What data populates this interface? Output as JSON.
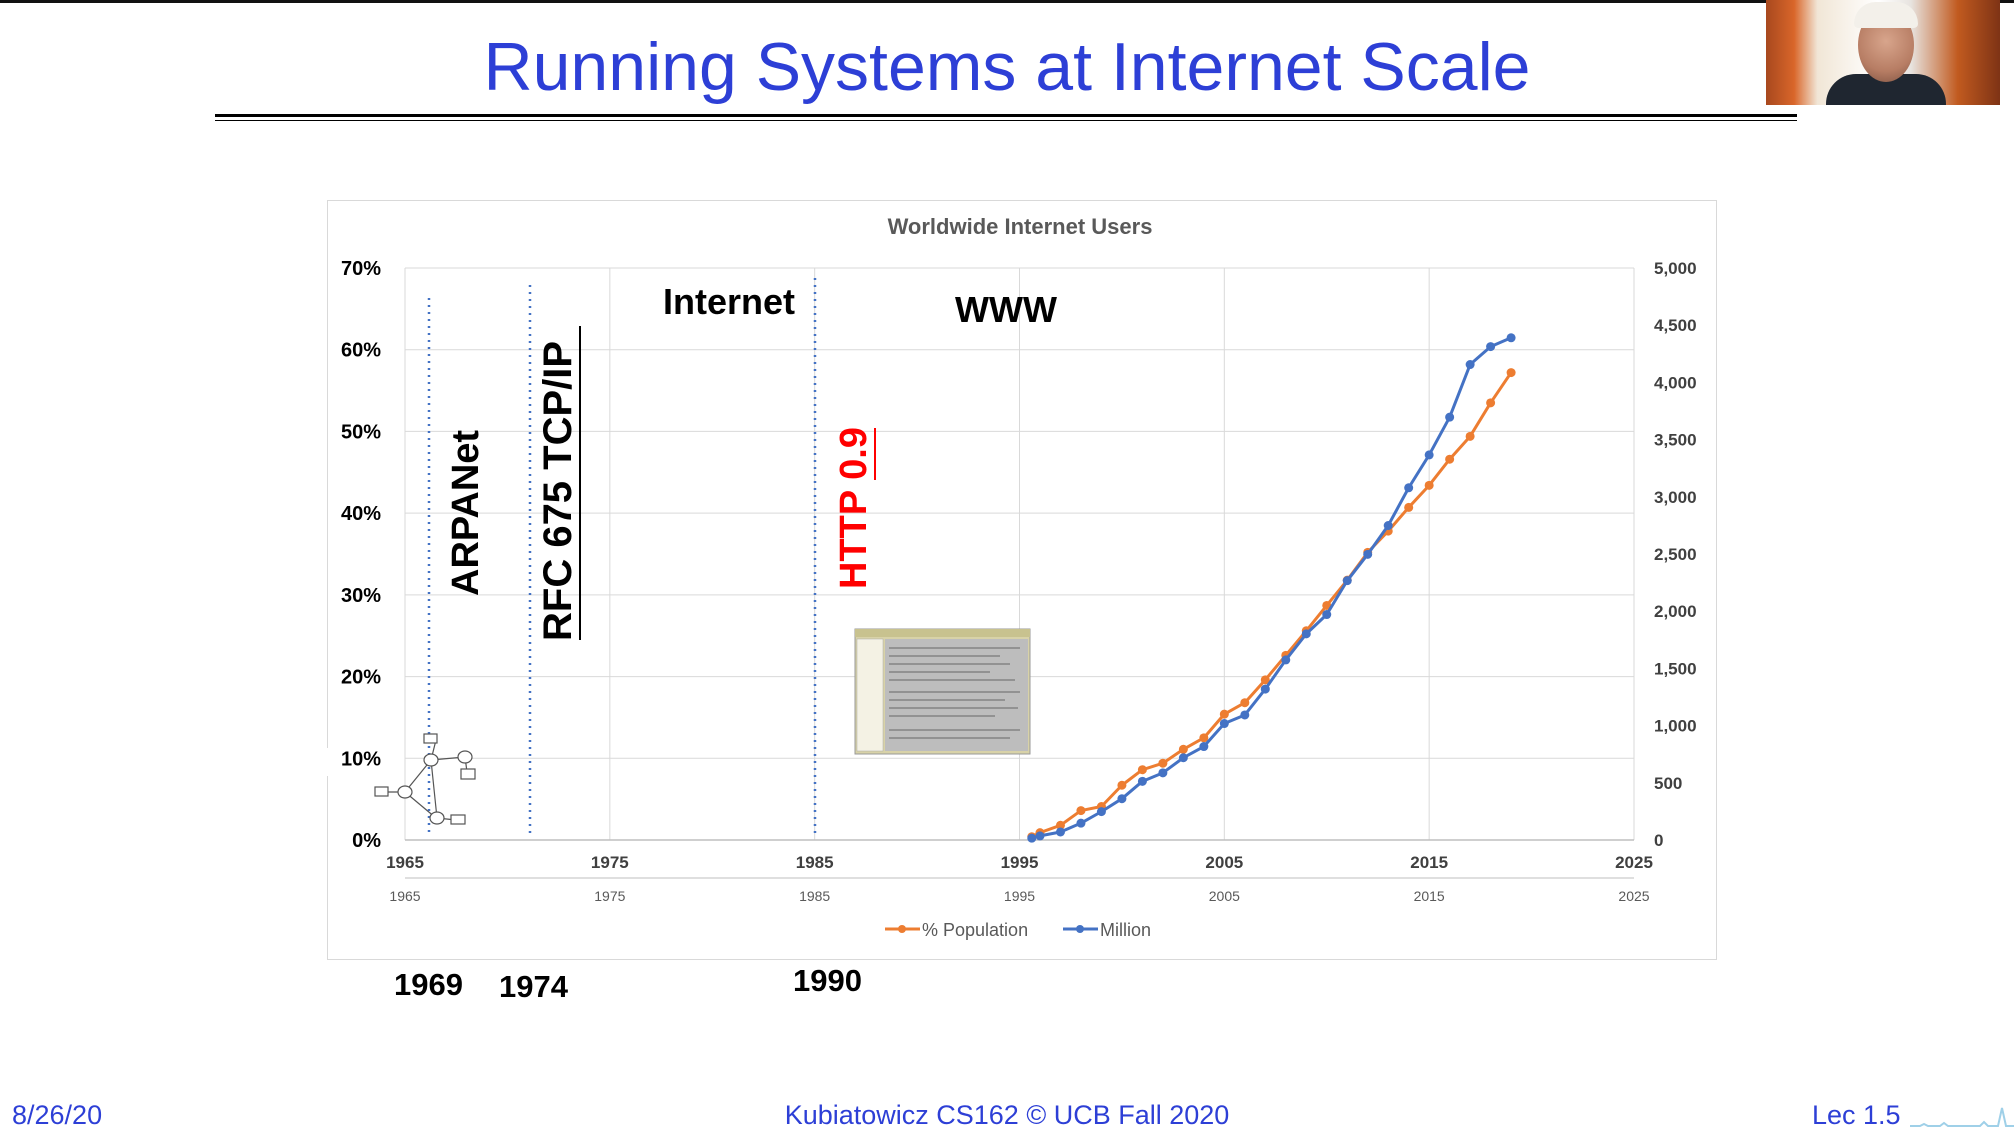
{
  "slide": {
    "title": "Running Systems at Internet Scale",
    "footer_date": "8/26/20",
    "footer_center": "Kubiatowicz CS162 © UCB Fall 2020",
    "footer_right": "Lec 1.5"
  },
  "colors": {
    "title": "#2d3fd6",
    "series_population": "#ed7d31",
    "series_million": "#4472c4",
    "marker_line": "#4472c4",
    "http_label": "#ff0000"
  },
  "annotations": {
    "arpanet": "ARPANet",
    "rfc": "RFC 675 TCP/IP",
    "internet": "Internet",
    "http": "HTTP 0.9",
    "www": "WWW",
    "year_1969": "1969",
    "year_1974": "1974",
    "year_1990": "1990"
  },
  "chart_data": {
    "type": "line",
    "title": "Worldwide Internet Users",
    "grid": true,
    "legend_position": "bottom",
    "xlim": [
      1965,
      2025
    ],
    "x_ticks": [
      "1965",
      "1975",
      "1985",
      "1995",
      "2005",
      "2015",
      "2025"
    ],
    "y_left": {
      "lim": [
        0,
        70
      ],
      "ticks": [
        "0%",
        "10%",
        "20%",
        "30%",
        "40%",
        "50%",
        "60%",
        "70%"
      ]
    },
    "y_right": {
      "lim": [
        0,
        5000
      ],
      "ticks": [
        "0",
        "500",
        "1,000",
        "1,500",
        "2,000",
        "2,500",
        "3,000",
        "3,500",
        "4,000",
        "4,500",
        "5,000"
      ]
    },
    "x": [
      1995.6,
      1996,
      1997,
      1998,
      1999,
      2000,
      2001,
      2002,
      2003,
      2004,
      2005,
      2006,
      2007,
      2008,
      2009,
      2010,
      2011,
      2012,
      2013,
      2014,
      2015,
      2016,
      2017,
      2018,
      2019
    ],
    "series": [
      {
        "name": "% Population",
        "axis": "left",
        "values": [
          0.4,
          0.9,
          1.8,
          3.6,
          4.1,
          6.7,
          8.6,
          9.4,
          11.1,
          12.5,
          15.4,
          16.8,
          19.6,
          22.6,
          25.6,
          28.7,
          31.8,
          35.2,
          37.8,
          40.7,
          43.4,
          46.6,
          49.4,
          53.5,
          57.2
        ]
      },
      {
        "name": "Million",
        "axis": "right",
        "values": [
          16,
          36,
          70,
          147,
          248,
          361,
          513,
          587,
          719,
          817,
          1018,
          1093,
          1319,
          1574,
          1802,
          1971,
          2267,
          2497,
          2749,
          3079,
          3366,
          3696,
          4156,
          4313,
          4390
        ]
      }
    ]
  }
}
